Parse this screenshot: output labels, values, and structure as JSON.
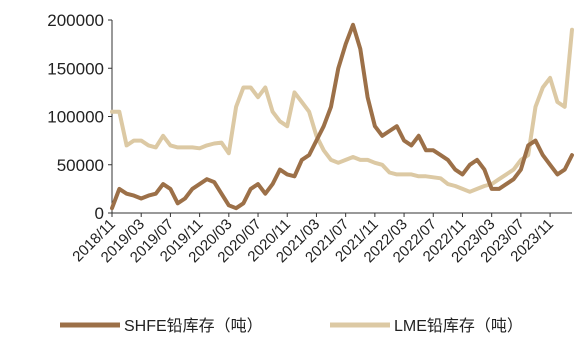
{
  "chart_data": {
    "type": "line",
    "ylim": [
      0,
      200000
    ],
    "yticks": [
      0,
      50000,
      100000,
      150000,
      200000
    ],
    "yticklabels": [
      "0",
      "50000",
      "100000",
      "150000",
      "200000"
    ],
    "x": [
      "2018/11",
      "2018/12",
      "2019/01",
      "2019/02",
      "2019/03",
      "2019/04",
      "2019/05",
      "2019/06",
      "2019/07",
      "2019/08",
      "2019/09",
      "2019/10",
      "2019/11",
      "2019/12",
      "2020/01",
      "2020/02",
      "2020/03",
      "2020/04",
      "2020/05",
      "2020/06",
      "2020/07",
      "2020/08",
      "2020/09",
      "2020/10",
      "2020/11",
      "2020/12",
      "2021/01",
      "2021/02",
      "2021/03",
      "2021/04",
      "2021/05",
      "2021/06",
      "2021/07",
      "2021/08",
      "2021/09",
      "2021/10",
      "2021/11",
      "2021/12",
      "2022/01",
      "2022/02",
      "2022/03",
      "2022/04",
      "2022/05",
      "2022/06",
      "2022/07",
      "2022/08",
      "2022/09",
      "2022/10",
      "2022/11",
      "2022/12",
      "2023/01",
      "2023/02",
      "2023/03",
      "2023/04",
      "2023/05",
      "2023/06",
      "2023/07",
      "2023/08",
      "2023/09",
      "2023/10",
      "2023/11",
      "2023/12",
      "2024/01",
      "2024/02"
    ],
    "xticklabels": [
      "2018/11",
      "2019/03",
      "2019/07",
      "2019/11",
      "2020/03",
      "2020/07",
      "2020/11",
      "2021/03",
      "2021/07",
      "2021/11",
      "2022/03",
      "2022/07",
      "2022/11",
      "2023/03",
      "2023/07",
      "2023/11"
    ],
    "series": [
      {
        "name": "SHFE铅库存（吨）",
        "color": "#9c7048",
        "values": [
          5000,
          25000,
          20000,
          18000,
          15000,
          18000,
          20000,
          30000,
          25000,
          10000,
          15000,
          25000,
          30000,
          35000,
          32000,
          20000,
          8000,
          5000,
          10000,
          25000,
          30000,
          20000,
          30000,
          45000,
          40000,
          38000,
          55000,
          60000,
          75000,
          90000,
          110000,
          150000,
          175000,
          195000,
          170000,
          120000,
          90000,
          80000,
          85000,
          90000,
          75000,
          70000,
          80000,
          65000,
          65000,
          60000,
          55000,
          45000,
          40000,
          50000,
          55000,
          45000,
          25000,
          25000,
          30000,
          35000,
          45000,
          70000,
          75000,
          60000,
          50000,
          40000,
          45000,
          60000
        ]
      },
      {
        "name": "LME铅库存（吨）",
        "color": "#dcc9a4",
        "values": [
          105000,
          105000,
          70000,
          75000,
          75000,
          70000,
          68000,
          80000,
          70000,
          68000,
          68000,
          68000,
          67000,
          70000,
          72000,
          73000,
          62000,
          110000,
          130000,
          130000,
          120000,
          130000,
          105000,
          95000,
          90000,
          125000,
          115000,
          105000,
          80000,
          65000,
          55000,
          52000,
          55000,
          58000,
          55000,
          55000,
          52000,
          50000,
          42000,
          40000,
          40000,
          40000,
          38000,
          38000,
          37000,
          36000,
          30000,
          28000,
          25000,
          22000,
          25000,
          28000,
          30000,
          35000,
          40000,
          45000,
          55000,
          60000,
          110000,
          130000,
          140000,
          115000,
          110000,
          190000
        ]
      }
    ],
    "legend": {
      "position": "bottom"
    }
  }
}
